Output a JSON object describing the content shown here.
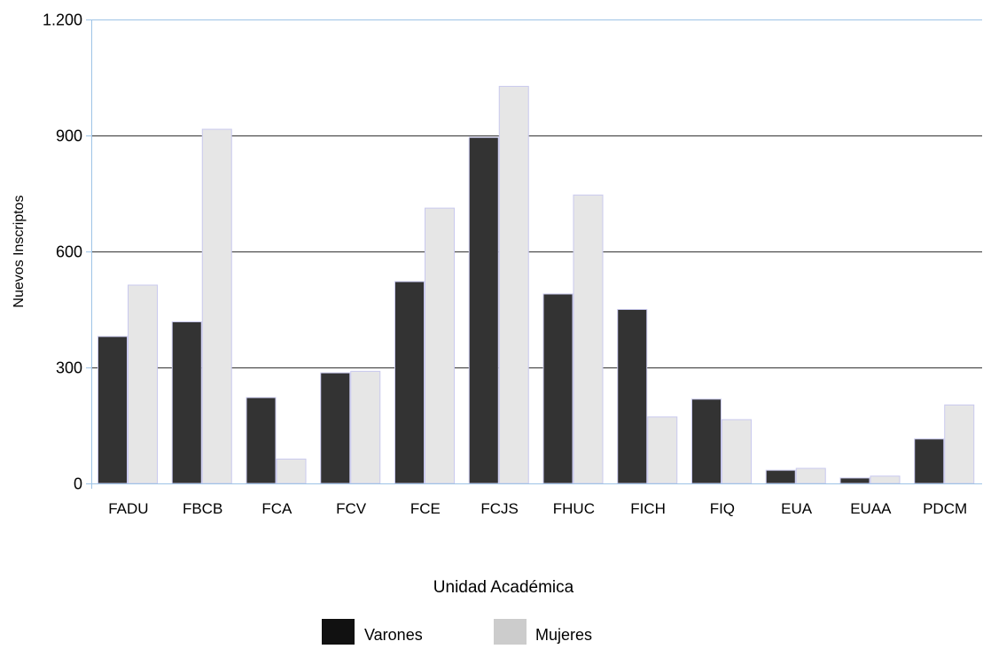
{
  "chart_data": {
    "type": "bar",
    "title": "",
    "xlabel": "Unidad Académica",
    "ylabel": "Nuevos  Inscriptos",
    "ylim": [
      0,
      1200
    ],
    "yticks": [
      0,
      300,
      600,
      900,
      1200
    ],
    "ytick_labels": [
      "0",
      "300",
      "600",
      "900",
      "1.200"
    ],
    "grid": true,
    "legend_position": "bottom-center",
    "categories": [
      "FADU",
      "FBCB",
      "FCA",
      "FCV",
      "FCE",
      "FCJS",
      "FHUC",
      "FICH",
      "FIQ",
      "EUA",
      "EUAA",
      "PDCM"
    ],
    "series": [
      {
        "name": "Varones",
        "color": "#333333",
        "legend_color": "#111111",
        "values": [
          380,
          418,
          222,
          286,
          522,
          895,
          490,
          450,
          218,
          34,
          14,
          115
        ]
      },
      {
        "name": "Mujeres",
        "color": "#e6e6e6",
        "legend_color": "#cccccc",
        "values": [
          513,
          916,
          63,
          290,
          712,
          1027,
          746,
          172,
          165,
          39,
          19,
          203
        ]
      }
    ],
    "axis_color": "#9ec3e6",
    "bar_edge_color": "#c9c9ee"
  }
}
